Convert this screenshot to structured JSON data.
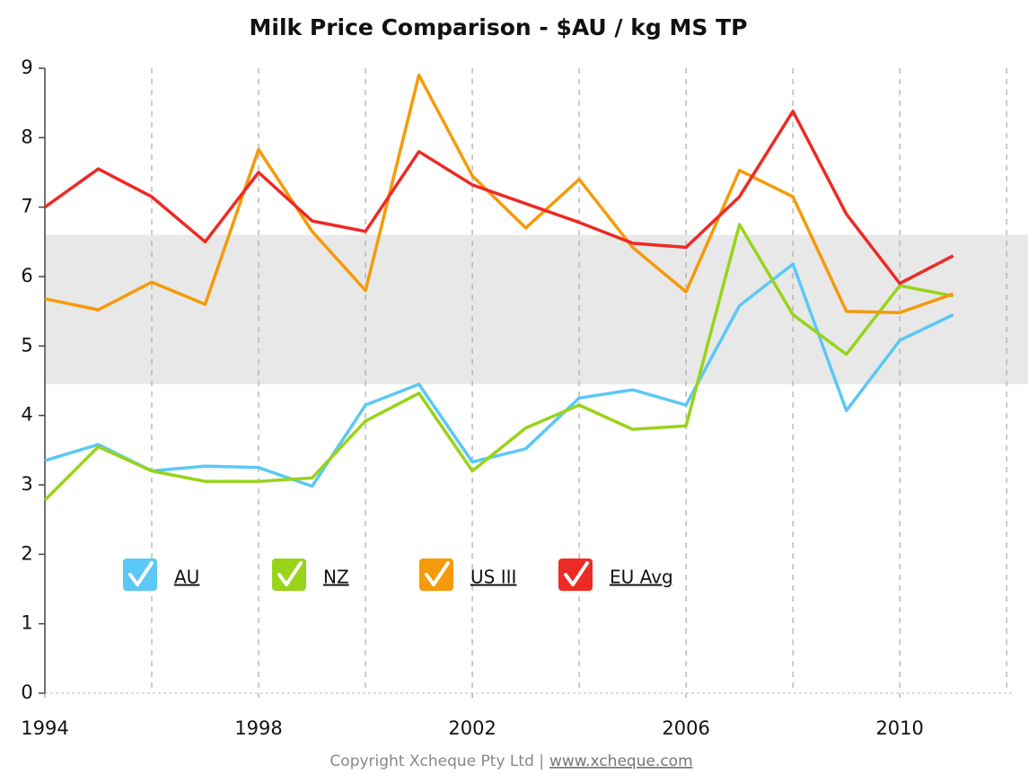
{
  "chart_data": {
    "type": "line",
    "title": "Milk Price Comparison - $AU / kg MS TP",
    "x": [
      1994,
      1995,
      1996,
      1997,
      1998,
      1999,
      2000,
      2001,
      2002,
      2003,
      2004,
      2005,
      2006,
      2007,
      2008,
      2009,
      2010,
      2011
    ],
    "series": [
      {
        "name": "AU",
        "color": "#5bc8f5",
        "values": [
          3.35,
          3.58,
          3.2,
          3.27,
          3.25,
          2.98,
          4.15,
          4.45,
          3.33,
          3.52,
          4.25,
          4.37,
          4.15,
          5.58,
          6.18,
          4.07,
          5.08,
          5.45
        ]
      },
      {
        "name": "NZ",
        "color": "#99d31a",
        "values": [
          2.78,
          3.55,
          3.2,
          3.05,
          3.05,
          3.1,
          3.92,
          4.32,
          3.2,
          3.82,
          4.15,
          3.8,
          3.85,
          6.75,
          5.45,
          4.88,
          5.87,
          5.72
        ]
      },
      {
        "name": "US III",
        "color": "#f59a0a",
        "values": [
          5.68,
          5.52,
          5.92,
          5.6,
          7.83,
          6.65,
          5.8,
          8.9,
          7.45,
          6.7,
          7.4,
          6.42,
          5.78,
          7.53,
          7.15,
          5.5,
          5.48,
          5.75
        ]
      },
      {
        "name": "EU Avg",
        "color": "#ee2a24",
        "values": [
          7.0,
          7.55,
          7.15,
          6.5,
          7.5,
          6.8,
          6.65,
          7.8,
          7.32,
          7.05,
          6.78,
          6.48,
          6.42,
          7.15,
          8.38,
          6.9,
          5.9,
          6.3
        ]
      }
    ],
    "xlim": [
      1994,
      2012.4
    ],
    "xticks": [
      1994,
      1998,
      2002,
      2006,
      2010
    ],
    "x_grid": [
      1996,
      1998,
      2000,
      2002,
      2004,
      2006,
      2008,
      2010,
      2012
    ],
    "ylim": [
      0,
      9
    ],
    "yticks": [
      0,
      1,
      2,
      3,
      4,
      5,
      6,
      7,
      8,
      9
    ],
    "band": [
      4.45,
      6.6
    ],
    "band_color": "#e8e8e8",
    "footer": "Copyright Xcheque Pty Ltd |",
    "footer_link": "www.xcheque.com"
  }
}
